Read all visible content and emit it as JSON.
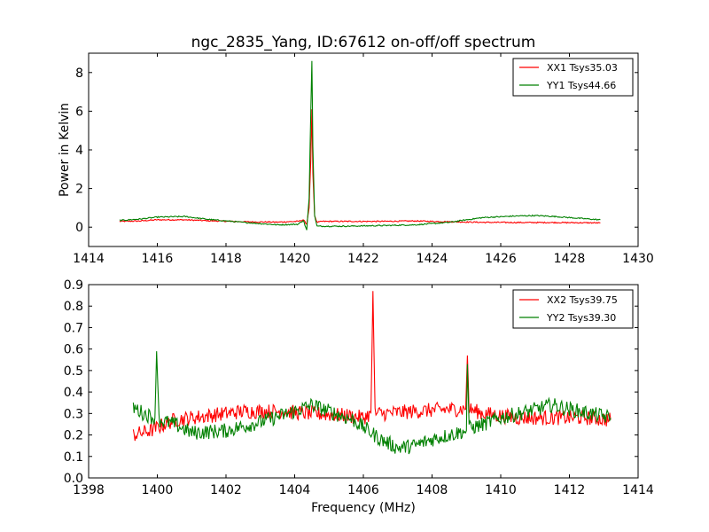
{
  "title": "ngc_2835_Yang, ID:67612 on-off/off spectrum",
  "colors": {
    "xx": "#ff0000",
    "yy": "#008000"
  },
  "chart_data": [
    {
      "type": "line",
      "title": "ngc_2835_Yang, ID:67612 on-off/off spectrum",
      "xlabel": "",
      "ylabel": "Power in Kelvin",
      "xlim": [
        1414,
        1430
      ],
      "ylim": [
        -1,
        9
      ],
      "xticks": [
        1414,
        1416,
        1418,
        1420,
        1422,
        1424,
        1426,
        1428,
        1430
      ],
      "yticks": [
        0,
        2,
        4,
        6,
        8
      ],
      "xtick_labels": [
        "1414",
        "1416",
        "1418",
        "1420",
        "1422",
        "1424",
        "1426",
        "1428",
        "1430"
      ],
      "ytick_labels": [
        "0",
        "2",
        "4",
        "6",
        "8"
      ],
      "grid": false,
      "legend_position": "top-right",
      "series": [
        {
          "name": "XX1 Tsys35.03",
          "color": "#ff0000",
          "x": [
            1414.9,
            1415.5,
            1416.0,
            1416.8,
            1417.5,
            1418.5,
            1419.5,
            1420.1,
            1420.25,
            1420.35,
            1420.42,
            1420.47,
            1420.5,
            1420.53,
            1420.58,
            1420.65,
            1420.8,
            1421.5,
            1422.5,
            1423.5,
            1424.5,
            1425.5,
            1426.5,
            1427.5,
            1428.9
          ],
          "y": [
            0.3,
            0.32,
            0.38,
            0.38,
            0.33,
            0.28,
            0.26,
            0.3,
            0.38,
            0.15,
            1.0,
            3.5,
            6.1,
            2.8,
            0.6,
            0.25,
            0.3,
            0.3,
            0.3,
            0.32,
            0.28,
            0.25,
            0.24,
            0.24,
            0.22
          ]
        },
        {
          "name": "YY1 Tsys44.66",
          "color": "#008000",
          "x": [
            1414.9,
            1415.5,
            1416.0,
            1416.8,
            1417.5,
            1418.5,
            1419.5,
            1420.1,
            1420.25,
            1420.35,
            1420.42,
            1420.47,
            1420.5,
            1420.53,
            1420.58,
            1420.65,
            1420.8,
            1421.5,
            1422.5,
            1423.5,
            1424.5,
            1425.0,
            1425.5,
            1426.5,
            1427.0,
            1427.5,
            1428.9
          ],
          "y": [
            0.35,
            0.42,
            0.52,
            0.55,
            0.4,
            0.25,
            0.12,
            0.15,
            0.35,
            -0.15,
            1.5,
            6.0,
            8.6,
            4.2,
            0.6,
            0.05,
            0.05,
            0.05,
            0.08,
            0.12,
            0.25,
            0.38,
            0.5,
            0.58,
            0.6,
            0.56,
            0.38
          ]
        }
      ]
    },
    {
      "type": "line",
      "title": "",
      "xlabel": "Frequency (MHz)",
      "ylabel": "",
      "xlim": [
        1398,
        1414
      ],
      "ylim": [
        0.0,
        0.9
      ],
      "xticks": [
        1398,
        1400,
        1402,
        1404,
        1406,
        1408,
        1410,
        1412,
        1414
      ],
      "yticks": [
        0.0,
        0.1,
        0.2,
        0.3,
        0.4,
        0.5,
        0.6,
        0.7,
        0.8,
        0.9
      ],
      "xtick_labels": [
        "1398",
        "1400",
        "1402",
        "1404",
        "1406",
        "1408",
        "1410",
        "1412",
        "1414"
      ],
      "ytick_labels": [
        "0.0",
        "0.1",
        "0.2",
        "0.3",
        "0.4",
        "0.5",
        "0.6",
        "0.7",
        "0.8",
        "0.9"
      ],
      "grid": false,
      "legend_position": "top-right",
      "series": [
        {
          "name": "XX2 Tsys39.75",
          "color": "#ff0000",
          "x": [
            1399.3,
            1399.8,
            1400.5,
            1401.5,
            1402.5,
            1403.5,
            1404.5,
            1405.5,
            1406.0,
            1406.22,
            1406.28,
            1406.34,
            1406.6,
            1407.5,
            1408.5,
            1408.98,
            1409.03,
            1409.08,
            1409.5,
            1410.5,
            1411.5,
            1412.5,
            1413.2
          ],
          "y": [
            0.2,
            0.22,
            0.27,
            0.29,
            0.31,
            0.31,
            0.3,
            0.29,
            0.28,
            0.3,
            0.87,
            0.3,
            0.3,
            0.31,
            0.32,
            0.32,
            0.57,
            0.32,
            0.3,
            0.28,
            0.28,
            0.28,
            0.27
          ]
        },
        {
          "name": "YY2 Tsys39.30",
          "color": "#008000",
          "x": [
            1399.3,
            1399.6,
            1399.93,
            1399.98,
            1400.05,
            1400.5,
            1401.0,
            1402.0,
            1403.0,
            1404.0,
            1404.5,
            1405.0,
            1405.7,
            1406.5,
            1407.0,
            1407.5,
            1408.0,
            1408.5,
            1409.0,
            1409.03,
            1409.08,
            1409.5,
            1410.0,
            1410.8,
            1411.5,
            1412.0,
            1413.2
          ],
          "y": [
            0.33,
            0.3,
            0.28,
            0.59,
            0.27,
            0.25,
            0.21,
            0.22,
            0.26,
            0.31,
            0.34,
            0.31,
            0.27,
            0.18,
            0.14,
            0.15,
            0.18,
            0.2,
            0.22,
            0.53,
            0.23,
            0.25,
            0.28,
            0.31,
            0.34,
            0.32,
            0.28
          ]
        }
      ]
    }
  ]
}
